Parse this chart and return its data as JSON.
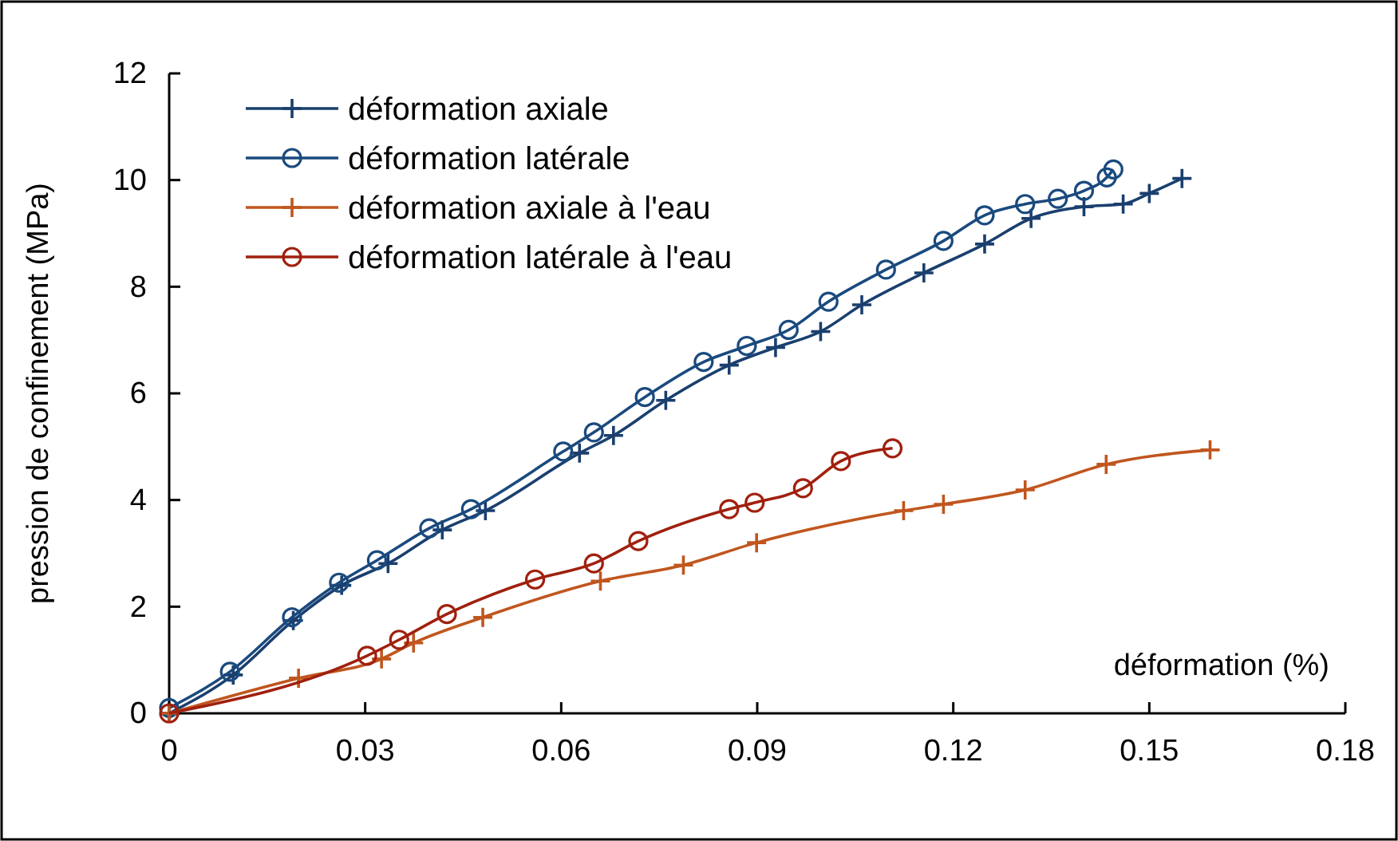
{
  "chart_data": {
    "type": "line",
    "xlabel": "déformation (%)",
    "ylabel": "pression de confinement (MPa)",
    "xlim": [
      0,
      0.18
    ],
    "ylim": [
      0,
      12
    ],
    "xticks": [
      0,
      0.03,
      0.06,
      0.09,
      0.12,
      0.15,
      0.18
    ],
    "yticks": [
      0,
      2,
      4,
      6,
      8,
      10,
      12
    ],
    "grid": false,
    "legend": "top left",
    "line_style": "solid",
    "series": [
      {
        "name": "déformation axiale",
        "color": "#1a3f6e",
        "marker": "cross",
        "x": [
          0,
          0.0098,
          0.019,
          0.0264,
          0.0335,
          0.0418,
          0.0484,
          0.0628,
          0.068,
          0.076,
          0.0857,
          0.0928,
          0.0997,
          0.106,
          0.1155,
          0.1248,
          0.1319,
          0.14,
          0.146,
          0.15,
          0.155
        ],
        "values": [
          0,
          0.72,
          1.74,
          2.4,
          2.81,
          3.44,
          3.8,
          4.88,
          5.21,
          5.87,
          6.53,
          6.86,
          7.16,
          7.66,
          8.26,
          8.8,
          9.28,
          9.5,
          9.55,
          9.75,
          10.03
        ]
      },
      {
        "name": "déformation latérale",
        "color": "#1a4a7e",
        "marker": "circle",
        "x": [
          0,
          0.0093,
          0.0188,
          0.026,
          0.0318,
          0.0398,
          0.0462,
          0.0603,
          0.065,
          0.0728,
          0.0818,
          0.0884,
          0.0948,
          0.1009,
          0.1097,
          0.1185,
          0.1248,
          0.131,
          0.136,
          0.14,
          0.1435,
          0.1445
        ],
        "values": [
          0.1,
          0.78,
          1.8,
          2.45,
          2.87,
          3.47,
          3.83,
          4.91,
          5.27,
          5.93,
          6.59,
          6.89,
          7.19,
          7.72,
          8.32,
          8.86,
          9.34,
          9.55,
          9.65,
          9.8,
          10.05,
          10.2
        ]
      },
      {
        "name": "déformation axiale à l'eau",
        "color": "#c0561e",
        "marker": "cross",
        "x": [
          0,
          0.0198,
          0.0325,
          0.0374,
          0.048,
          0.066,
          0.0787,
          0.0899,
          0.1124,
          0.1185,
          0.131,
          0.1434,
          0.1593
        ],
        "values": [
          0,
          0.66,
          1.02,
          1.32,
          1.8,
          2.48,
          2.78,
          3.2,
          3.8,
          3.92,
          4.19,
          4.67,
          4.94
        ]
      },
      {
        "name": "déformation latérale à l'eau",
        "color": "#a0200e",
        "marker": "circle",
        "x": [
          0,
          0.0303,
          0.0352,
          0.0425,
          0.056,
          0.065,
          0.0718,
          0.0857,
          0.0896,
          0.097,
          0.1028,
          0.1107
        ],
        "values": [
          0,
          1.08,
          1.38,
          1.86,
          2.51,
          2.81,
          3.23,
          3.83,
          3.95,
          4.22,
          4.73,
          4.97
        ]
      }
    ]
  }
}
